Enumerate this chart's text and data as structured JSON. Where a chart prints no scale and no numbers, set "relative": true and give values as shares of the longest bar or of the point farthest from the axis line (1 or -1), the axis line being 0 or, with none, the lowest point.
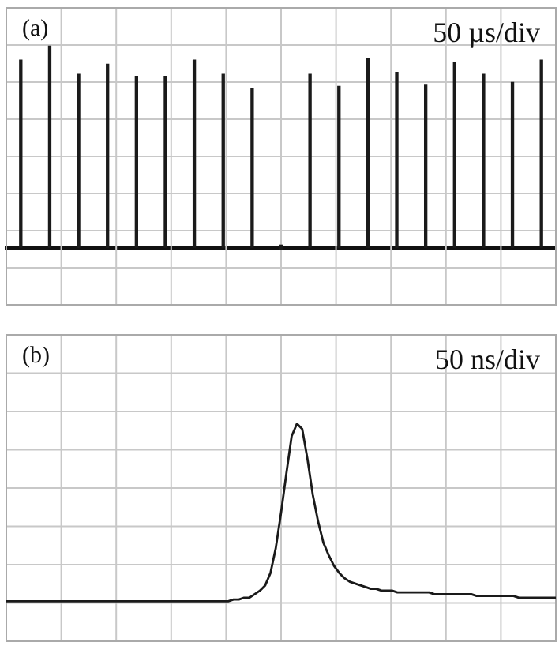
{
  "chart_data": [
    {
      "type": "bar",
      "relative": true,
      "tick_labels": false,
      "grid": true,
      "legend": false,
      "annotations": [
        "(a)",
        "50 µs/div"
      ],
      "categories": [
        null,
        null,
        null,
        null,
        null,
        null,
        null,
        null,
        null,
        null,
        null,
        null,
        null,
        null,
        null,
        null,
        null,
        null,
        null
      ],
      "series": [
        {
          "color": "#1a1a1a",
          "values": [
            0.93,
            1,
            0.86,
            0.91,
            0.85,
            0.85,
            0.93,
            0.86,
            0.79,
            0,
            0.86,
            0.8,
            0.94,
            0.87,
            0.81,
            0.92,
            0.86,
            0.82,
            0.93
          ]
        }
      ]
    },
    {
      "type": "line",
      "relative": true,
      "tick_labels": false,
      "grid": true,
      "legend": false,
      "annotations": [
        "(b)",
        "50 ns/div"
      ],
      "categories": [
        null,
        null,
        null,
        null,
        null,
        null,
        null,
        null,
        null,
        null,
        null,
        null,
        null,
        null,
        null,
        null,
        null,
        null,
        null,
        null,
        null,
        null,
        null,
        null,
        null,
        null,
        null,
        null,
        null,
        null,
        null,
        null,
        null,
        null,
        null,
        null,
        null,
        null,
        null,
        null,
        null,
        null,
        null,
        null,
        null,
        null,
        null,
        null,
        null,
        null,
        null,
        null,
        null,
        null,
        null,
        null,
        null,
        null,
        null,
        null,
        null,
        null,
        null,
        null,
        null,
        null,
        null,
        null,
        null,
        null,
        null,
        null,
        null,
        null,
        null,
        null,
        null,
        null,
        null,
        null,
        null,
        null,
        null,
        null,
        null,
        null,
        null,
        null,
        null,
        null,
        null,
        null,
        null,
        null,
        null,
        null,
        null,
        null,
        null,
        null,
        null,
        null,
        null,
        null,
        null
      ],
      "series": [
        {
          "color": "#1a1a1a",
          "values": [
            0,
            0,
            0,
            0,
            0,
            0,
            0,
            0,
            0,
            0,
            0,
            0,
            0,
            0,
            0,
            0,
            0,
            0,
            0,
            0,
            0,
            0,
            0,
            0,
            0,
            0,
            0,
            0,
            0,
            0,
            0,
            0,
            0,
            0,
            0,
            0,
            0,
            0,
            0,
            0,
            0,
            0,
            0,
            0.01,
            0.01,
            0.02,
            0.02,
            0.04,
            0.06,
            0.09,
            0.16,
            0.3,
            0.5,
            0.72,
            0.93,
            1,
            0.97,
            0.8,
            0.6,
            0.45,
            0.33,
            0.26,
            0.2,
            0.16,
            0.13,
            0.11,
            0.1,
            0.09,
            0.08,
            0.07,
            0.07,
            0.06,
            0.06,
            0.06,
            0.05,
            0.05,
            0.05,
            0.05,
            0.05,
            0.05,
            0.05,
            0.04,
            0.04,
            0.04,
            0.04,
            0.04,
            0.04,
            0.04,
            0.04,
            0.03,
            0.03,
            0.03,
            0.03,
            0.03,
            0.03,
            0.03,
            0.03,
            0.02,
            0.02,
            0.02,
            0.02,
            0.02,
            0.02,
            0.02,
            0.02
          ]
        }
      ]
    }
  ]
}
